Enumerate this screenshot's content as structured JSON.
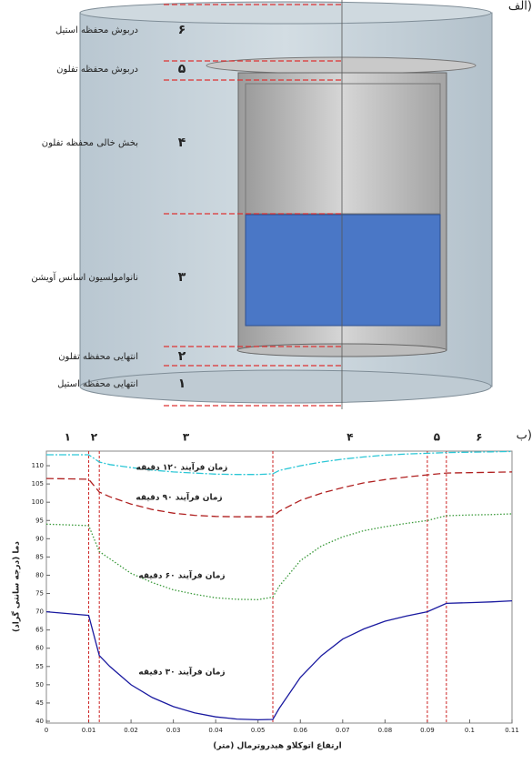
{
  "diagram": {
    "corner_label": "الف)",
    "parts": [
      {
        "number": "۶",
        "label": "دربوش محفظه استیل"
      },
      {
        "number": "۵",
        "label": "دربوش محفظه تفلون"
      },
      {
        "number": "۴",
        "label": "بخش خالی محفظه تفلون"
      },
      {
        "number": "۳",
        "label": "نانوامولسیون اسانس آویشن"
      },
      {
        "number": "۲",
        "label": "انتهایی محفظه تفلون"
      },
      {
        "number": "۱",
        "label": "انتهایی محفظه استیل"
      }
    ]
  },
  "chart_data": {
    "type": "line",
    "corner_label": "ب)",
    "x_label": "ارتفاع اتوکلاو هیدروترمال (متر)",
    "y_label": "دما (درجه سانتی گراد)",
    "zone_labels": [
      "۱",
      "۲",
      "۳",
      "۴",
      "۵",
      "۶"
    ],
    "boundaries": [
      0.01,
      0.0125,
      0.0535,
      0.09,
      0.0945
    ],
    "x": [
      0,
      0.01,
      0.0125,
      0.015,
      0.02,
      0.025,
      0.03,
      0.035,
      0.04,
      0.045,
      0.05,
      0.0535,
      0.055,
      0.06,
      0.065,
      0.07,
      0.075,
      0.08,
      0.085,
      0.09,
      0.0945,
      0.1,
      0.105,
      0.11
    ],
    "series": [
      {
        "name": "زمان فرآیند ۱۲۰ دقیقه",
        "color": "#2cc7d6",
        "dash": "8 2 2 2",
        "values": [
          113,
          113,
          111,
          110.3,
          109.5,
          108.8,
          108.3,
          108,
          107.7,
          107.6,
          107.6,
          107.8,
          108.7,
          110,
          111,
          111.8,
          112.4,
          112.9,
          113.2,
          113.4,
          113.6,
          113.7,
          113.8,
          113.9
        ]
      },
      {
        "name": "زمان فرآیند ۹۰ دقیقه",
        "color": "#b02020",
        "dash": "8 4",
        "values": [
          106.5,
          106.3,
          102.8,
          101.5,
          99.5,
          98,
          97,
          96.4,
          96.1,
          96,
          96,
          96,
          97.5,
          100.5,
          102.5,
          104,
          105.3,
          106.2,
          106.9,
          107.5,
          108,
          108.1,
          108.2,
          108.3
        ]
      },
      {
        "name": "زمان فرآیند ۶۰ دقیقه",
        "color": "#3a9a3a",
        "dash": "1.5 2",
        "values": [
          94,
          93.6,
          86.5,
          84.5,
          80.5,
          78,
          76,
          74.8,
          73.8,
          73.4,
          73.3,
          74,
          77,
          84,
          88,
          90.5,
          92.2,
          93.3,
          94.2,
          95,
          96.3,
          96.5,
          96.6,
          96.8
        ]
      },
      {
        "name": "زمان فرآیند ۳۰ دقیقه",
        "color": "#1a1aa0",
        "dash": "none",
        "values": [
          70,
          69,
          58,
          55,
          50,
          46.5,
          44,
          42.3,
          41.2,
          40.6,
          40.4,
          40.5,
          43.5,
          52,
          58,
          62.5,
          65.3,
          67.4,
          68.8,
          70,
          72.3,
          72.5,
          72.7,
          73
        ]
      }
    ],
    "xlim": [
      0,
      0.11
    ],
    "ylim": [
      39.5,
      114
    ],
    "xticks": [
      0,
      0.01,
      0.02,
      0.03,
      0.04,
      0.05,
      0.06,
      0.07,
      0.08,
      0.09,
      0.1,
      0.11
    ],
    "yticks": [
      40,
      45,
      50,
      55,
      60,
      65,
      70,
      75,
      80,
      85,
      90,
      95,
      100,
      105,
      110
    ],
    "grid": false
  }
}
